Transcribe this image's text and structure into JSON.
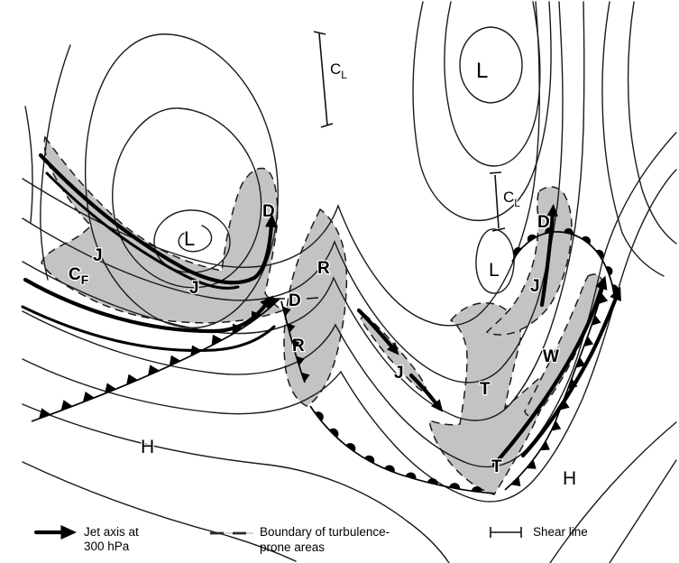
{
  "figure": {
    "description": "Schematic upper-air chart showing jet axes, turbulence-prone areas and shear lines",
    "colors": {
      "background": "#ffffff",
      "line": "#1a1a1a",
      "turbulence_shade": "#c3c3c3",
      "jet": "#000000"
    }
  },
  "labels": {
    "low_left": "L",
    "low_top_right": "L",
    "low_mid_right": "L",
    "high_left": "H",
    "high_right": "H",
    "jet1": "J",
    "jet2": "J",
    "jet3": "J",
    "jet4": "J",
    "d1": "D",
    "d2": "D",
    "d3": "D",
    "r1": "R",
    "r2": "R",
    "t1": "T",
    "t2": "T",
    "w1": "W",
    "cf": {
      "base": "C",
      "sub": "F"
    },
    "cl_top": {
      "base": "C",
      "sub": "L"
    },
    "cl_right": {
      "base": "C",
      "sub": "L"
    }
  },
  "legend": {
    "jet": {
      "symbol": "thick-arrow",
      "line1": "Jet axis at",
      "line2": "300 hPa"
    },
    "boundary": {
      "symbol": "dashed-line",
      "line1": "Boundary of turbulence-",
      "line2": "prone areas"
    },
    "shear": {
      "symbol": "capped-line",
      "line1": "Shear line"
    }
  }
}
